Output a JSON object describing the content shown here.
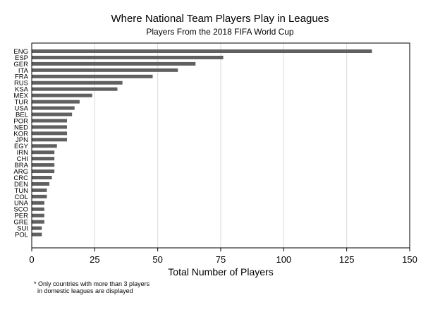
{
  "chart_data": {
    "type": "bar",
    "orientation": "horizontal",
    "title": "Where National Team Players Play in Leagues",
    "subtitle": "Players From the 2018 FIFA World Cup",
    "xlabel": "Total Number of Players",
    "ylabel": "",
    "xlim": [
      0,
      150
    ],
    "xticks": [
      0,
      25,
      50,
      75,
      100,
      125,
      150
    ],
    "grid": true,
    "legend": "none",
    "bar_color": "#606060",
    "grid_color": "#d9d9d9",
    "categories": [
      "ENG",
      "ESP",
      "GER",
      "ITA",
      "FRA",
      "RUS",
      "KSA",
      "MEX",
      "TUR",
      "USA",
      "BEL",
      "POR",
      "NED",
      "KOR",
      "JPN",
      "EGY",
      "IRN",
      "CHI",
      "BRA",
      "ARG",
      "CRC",
      "DEN",
      "TUN",
      "COL",
      "UNA",
      "SCO",
      "PER",
      "GRE",
      "SUI",
      "POL"
    ],
    "values": [
      135,
      76,
      65,
      58,
      48,
      36,
      34,
      24,
      19,
      17,
      16,
      14,
      14,
      14,
      14,
      10,
      9,
      9,
      9,
      9,
      8,
      7,
      6,
      6,
      5,
      5,
      5,
      5,
      4,
      4
    ]
  },
  "footnote": {
    "line1": "* Only countries with more than 3 players",
    "line2": "in domestic leagues are displayed"
  }
}
